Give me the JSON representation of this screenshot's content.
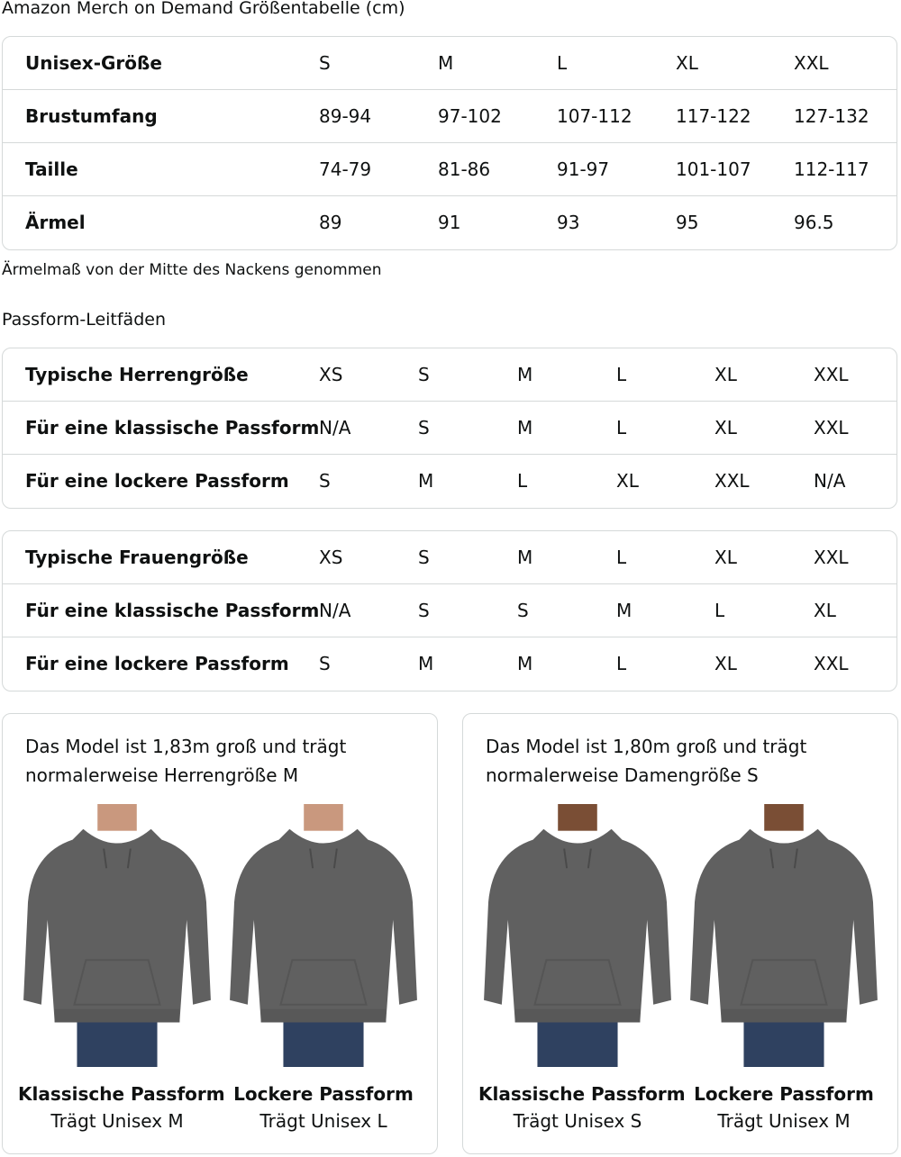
{
  "size_chart": {
    "title": "Amazon Merch on Demand Größentabelle (cm)",
    "rows": [
      {
        "label": "Unisex-Größe",
        "values": [
          "S",
          "M",
          "L",
          "XL",
          "XXL"
        ]
      },
      {
        "label": "Brustumfang",
        "values": [
          "89-94",
          "97-102",
          "107-112",
          "117-122",
          "127-132"
        ]
      },
      {
        "label": "Taille",
        "values": [
          "74-79",
          "81-86",
          "91-97",
          "101-107",
          "112-117"
        ]
      },
      {
        "label": "Ärmel",
        "values": [
          "89",
          "91",
          "93",
          "95",
          "96.5"
        ]
      }
    ],
    "note": "Ärmelmaß von der Mitte des Nackens genommen"
  },
  "fit_guides": {
    "title": "Passform-Leitfäden",
    "men": [
      {
        "label": "Typische Herrengröße",
        "values": [
          "XS",
          "S",
          "M",
          "L",
          "XL",
          "XXL"
        ]
      },
      {
        "label": "Für eine klassische Passform",
        "values": [
          "N/A",
          "S",
          "M",
          "L",
          "XL",
          "XXL"
        ]
      },
      {
        "label": "Für eine lockere Passform",
        "values": [
          "S",
          "M",
          "L",
          "XL",
          "XXL",
          "N/A"
        ]
      }
    ],
    "women": [
      {
        "label": "Typische Frauengröße",
        "values": [
          "XS",
          "S",
          "M",
          "L",
          "XL",
          "XXL"
        ]
      },
      {
        "label": "Für eine klassische Passform",
        "values": [
          "N/A",
          "S",
          "S",
          "M",
          "L",
          "XL"
        ]
      },
      {
        "label": "Für eine lockere Passform",
        "values": [
          "S",
          "M",
          "M",
          "L",
          "XL",
          "XXL"
        ]
      }
    ]
  },
  "models": [
    {
      "caption": "Das Model ist 1,83m groß und trägt normalerweise Herrengröße M",
      "figures": [
        {
          "title": "Klassische Passform",
          "subtitle": "Trägt Unisex M",
          "skin": "#c9987e"
        },
        {
          "title": "Lockere Passform",
          "subtitle": "Trägt Unisex L",
          "skin": "#c9987e"
        }
      ]
    },
    {
      "caption": "Das Model ist 1,80m groß und trägt normalerweise Damengröße S",
      "figures": [
        {
          "title": "Klassische Passform",
          "subtitle": "Trägt Unisex S",
          "skin": "#7a4e35"
        },
        {
          "title": "Lockere Passform",
          "subtitle": "Trägt Unisex M",
          "skin": "#7a4e35"
        }
      ]
    }
  ],
  "colors": {
    "hoodie": "#606060",
    "jeans": "#2f4160",
    "border": "#d5d9d9"
  }
}
